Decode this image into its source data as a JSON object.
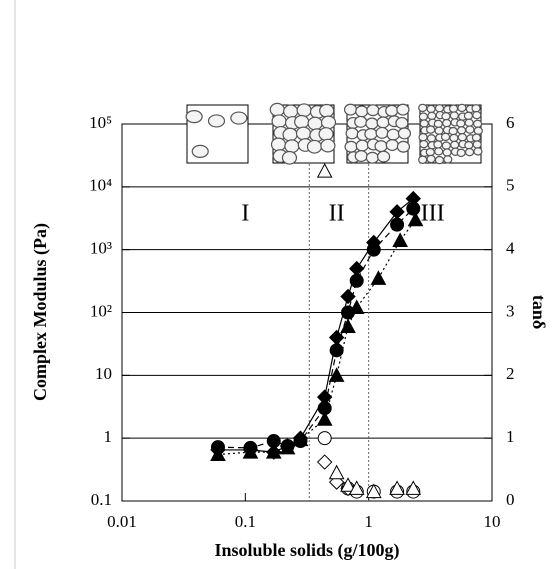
{
  "chart_data": {
    "type": "scatter",
    "xlabel": "Insoluble solids (g/100g)",
    "ylabel": "Complex Modulus (Pa)",
    "y2label": "tanδ",
    "xscale": "log",
    "yscale": "log",
    "xlim": [
      0.01,
      10
    ],
    "xticks": [
      0.01,
      0.1,
      1,
      10
    ],
    "ylim": [
      0.1,
      100000
    ],
    "yticks": [
      0.1,
      1,
      10,
      {
        "value": 100,
        "label": "10²"
      },
      {
        "value": 1000,
        "label": "10³"
      },
      {
        "value": 10000,
        "label": "10⁴"
      },
      {
        "value": 100000,
        "label": "10⁵"
      }
    ],
    "y2lim": [
      0,
      6
    ],
    "y2ticks": [
      0,
      1,
      2,
      3,
      4,
      5,
      6
    ],
    "grid": true,
    "boundaries": [
      0.33,
      1.0
    ],
    "annotations": [
      {
        "text": "I",
        "x": 0.1
      },
      {
        "text": "II",
        "x": 0.55
      },
      {
        "text": "III",
        "x": 3.3
      }
    ],
    "series": [
      {
        "marker": "diamond",
        "filled": true,
        "line": "solid",
        "color": "#000",
        "x": [
          0.06,
          0.11,
          0.17,
          0.22,
          0.28,
          0.44,
          0.55,
          0.68,
          0.8,
          1.1,
          1.7,
          2.3
        ],
        "values": [
          0.65,
          0.65,
          0.6,
          0.75,
          1.0,
          4.5,
          40,
          180,
          500,
          1300,
          4000,
          6500
        ]
      },
      {
        "marker": "circle",
        "filled": true,
        "line": "dashed",
        "color": "#000",
        "x": [
          0.06,
          0.11,
          0.17,
          0.22,
          0.28,
          0.44,
          0.55,
          0.68,
          0.8,
          1.1,
          1.7,
          2.3
        ],
        "values": [
          0.72,
          0.7,
          0.9,
          0.75,
          0.9,
          3,
          25,
          100,
          320,
          1000,
          2500,
          4500
        ]
      },
      {
        "marker": "triangle",
        "filled": true,
        "line": "dotted",
        "color": "#000",
        "x": [
          0.06,
          0.11,
          0.17,
          0.22,
          0.28,
          0.44,
          0.55,
          0.68,
          0.8,
          1.2,
          1.8,
          2.4
        ],
        "values": [
          0.55,
          0.6,
          0.6,
          0.7,
          0.95,
          2,
          10,
          60,
          120,
          350,
          1400,
          3000
        ]
      },
      {
        "marker": "circle",
        "filled": false,
        "axis": "y2",
        "color": "#000",
        "x": [
          0.44,
          0.68,
          0.8,
          1.1,
          1.7,
          2.3
        ],
        "values": [
          1.0,
          0.2,
          0.15,
          0.15,
          0.15,
          0.15
        ]
      },
      {
        "marker": "diamond",
        "filled": false,
        "axis": "y2",
        "color": "#000",
        "x": [
          0.44,
          0.55,
          0.68
        ],
        "values": [
          0.62,
          0.3,
          0.2
        ]
      },
      {
        "marker": "triangle",
        "filled": false,
        "axis": "y2",
        "color": "#000",
        "x": [
          0.44,
          0.55,
          0.68,
          0.8,
          1.1,
          1.7,
          2.3
        ],
        "values": [
          5.25,
          0.45,
          0.25,
          0.2,
          0.15,
          0.2,
          0.2
        ]
      }
    ]
  }
}
